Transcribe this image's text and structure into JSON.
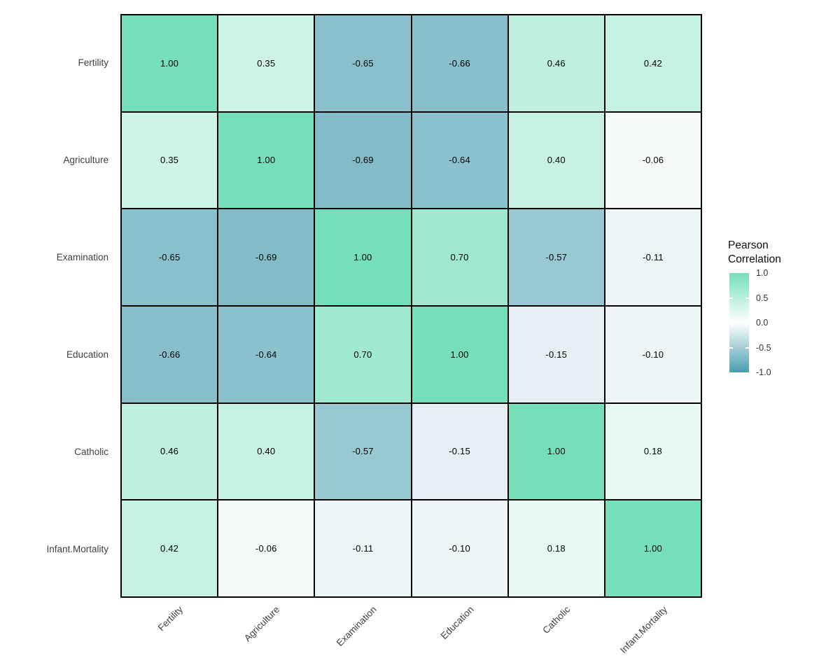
{
  "chart_data": {
    "type": "heatmap",
    "title": "",
    "x_labels": [
      "Fertility",
      "Agriculture",
      "Examination",
      "Education",
      "Catholic",
      "Infant.Mortality"
    ],
    "y_labels": [
      "Fertility",
      "Agriculture",
      "Examination",
      "Education",
      "Catholic",
      "Infant.Mortality"
    ],
    "matrix": [
      [
        1.0,
        0.35,
        -0.65,
        -0.66,
        0.46,
        0.42
      ],
      [
        0.35,
        1.0,
        -0.69,
        -0.64,
        0.4,
        -0.06
      ],
      [
        -0.65,
        -0.69,
        1.0,
        0.7,
        -0.57,
        -0.11
      ],
      [
        -0.66,
        -0.64,
        0.7,
        1.0,
        -0.15,
        -0.1
      ],
      [
        0.46,
        0.4,
        -0.57,
        -0.15,
        1.0,
        0.18
      ],
      [
        0.42,
        -0.06,
        -0.11,
        -0.1,
        0.18,
        1.0
      ]
    ],
    "value_decimals": 2,
    "legend": {
      "title_lines": [
        "Pearson",
        "Correlation"
      ],
      "tick_labels": [
        "1.0",
        "0.5",
        "0.0",
        "-0.5",
        "-1.0"
      ],
      "tick_values": [
        1.0,
        0.5,
        0.0,
        -0.5,
        -1.0
      ],
      "domain": [
        -1.0,
        1.0
      ],
      "position": "right"
    },
    "colors": {
      "high": "#74DFBA",
      "mid": "#FFFFFF",
      "low": "#4A9EAF",
      "cell_border": "#000000",
      "cell_text": "#000000",
      "axis_text": "#404040",
      "legend_text": "#333333",
      "background": "#FFFFFF"
    },
    "grid": false
  }
}
